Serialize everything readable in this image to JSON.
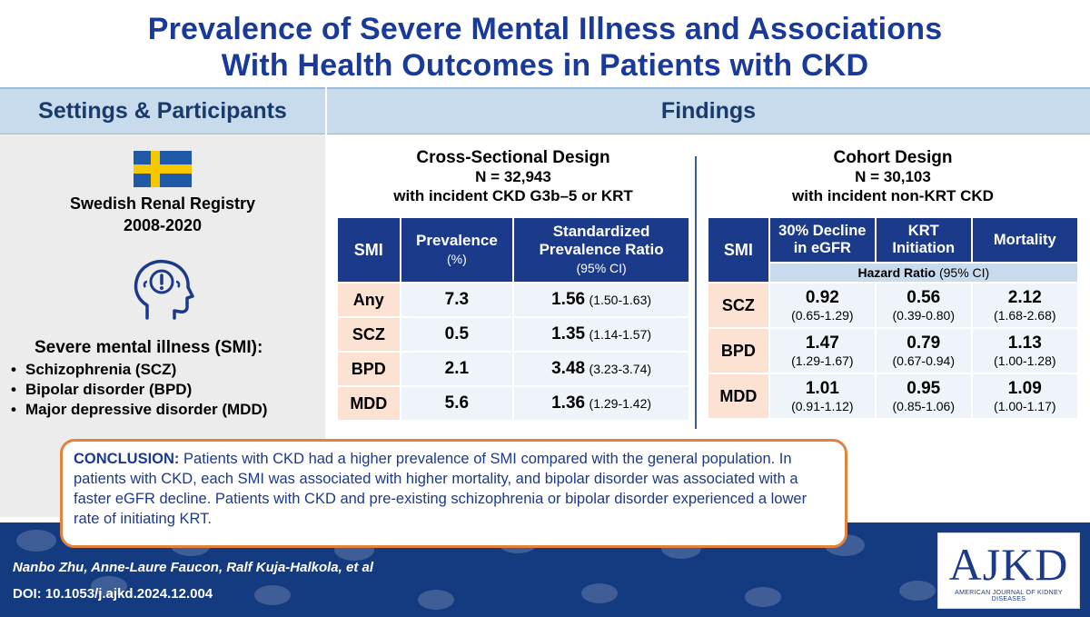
{
  "title": {
    "line1": "Prevalence of Severe Mental Illness and Associations",
    "line2": "With Health Outcomes in Patients with CKD"
  },
  "headers": {
    "left": "Settings & Participants",
    "right": "Findings"
  },
  "settings": {
    "registry": "Swedish Renal Registry",
    "years": "2008-2020",
    "smi_title": "Severe mental illness (SMI):",
    "smi_items": [
      "Schizophrenia (SCZ)",
      "Bipolar disorder (BPD)",
      "Major depressive disorder (MDD)"
    ],
    "bullet": "•",
    "icons": [
      "sweden-flag",
      "head-alert-icon"
    ]
  },
  "cross_sectional": {
    "title": "Cross-Sectional Design",
    "n": "N = 32,943",
    "desc": "with incident CKD G3b–5 or KRT",
    "columns": {
      "smi": "SMI",
      "prevalence": "Prevalence",
      "prevalence_unit": "(%)",
      "spr": "Standardized Prevalence Ratio",
      "spr_ci": "(95% CI)"
    },
    "rows": [
      {
        "label": "Any",
        "prevalence": "7.3",
        "ratio": "1.56",
        "ci": "(1.50-1.63)"
      },
      {
        "label": "SCZ",
        "prevalence": "0.5",
        "ratio": "1.35",
        "ci": "(1.14-1.57)"
      },
      {
        "label": "BPD",
        "prevalence": "2.1",
        "ratio": "3.48",
        "ci": "(3.23-3.74)"
      },
      {
        "label": "MDD",
        "prevalence": "5.6",
        "ratio": "1.36",
        "ci": "(1.29-1.42)"
      }
    ]
  },
  "cohort": {
    "title": "Cohort Design",
    "n": "N = 30,103",
    "desc": "with incident non-KRT CKD",
    "columns": {
      "smi": "SMI",
      "egfr": "30% Decline in eGFR",
      "krt": "KRT Initiation",
      "mortality": "Mortality",
      "hr_label": "Hazard Ratio",
      "hr_ci": "(95% CI)"
    },
    "rows": [
      {
        "label": "SCZ",
        "egfr": "0.92",
        "egfr_ci": "(0.65-1.29)",
        "krt": "0.56",
        "krt_ci": "(0.39-0.80)",
        "mort": "2.12",
        "mort_ci": "(1.68-2.68)"
      },
      {
        "label": "BPD",
        "egfr": "1.47",
        "egfr_ci": "(1.29-1.67)",
        "krt": "0.79",
        "krt_ci": "(0.67-0.94)",
        "mort": "1.13",
        "mort_ci": "(1.00-1.28)"
      },
      {
        "label": "MDD",
        "egfr": "1.01",
        "egfr_ci": "(0.91-1.12)",
        "krt": "0.95",
        "krt_ci": "(0.85-1.06)",
        "mort": "1.09",
        "mort_ci": "(1.00-1.17)"
      }
    ]
  },
  "conclusion": {
    "label": "CONCLUSION:",
    "text": "Patients with CKD had a higher prevalence of SMI compared with the general population. In patients with CKD, each SMI was associated with higher mortality, and bipolar disorder was associated with a faster eGFR decline. Patients with CKD and pre-existing schizophrenia or bipolar disorder experienced a lower rate of initiating KRT."
  },
  "footer": {
    "authors": "Nanbo Zhu, Anne-Laure Faucon, Ralf Kuja-Halkola, et al",
    "doi": "DOI: 10.1053/j.ajkd.2024.12.004",
    "logo": "AJKD",
    "logo_sub": "AMERICAN JOURNAL OF KIDNEY DISEASES"
  },
  "colors": {
    "title_blue": "#1a3a9a",
    "header_bg": "#c7dbec",
    "table_header": "#1c3a8a",
    "row_label_bg": "#fbe2d3",
    "accent_orange": "#e2823f",
    "footer_bg": "#143a80"
  }
}
